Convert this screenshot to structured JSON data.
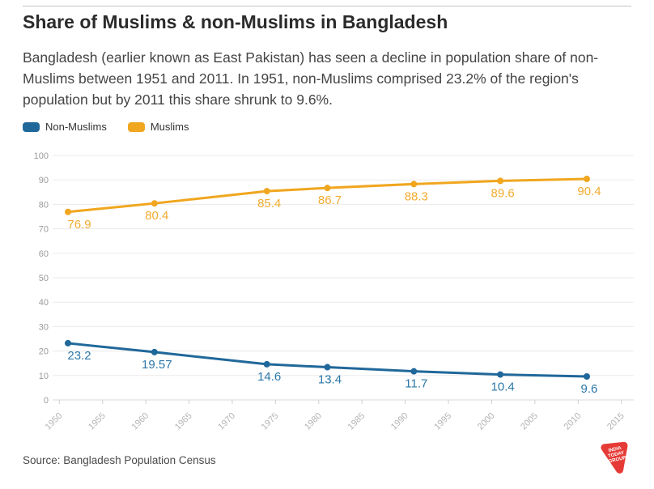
{
  "header": {
    "title": "Share of Muslims & non-Muslims in Bangladesh",
    "subtitle": "Bangladesh (earlier known as East Pakistan) has seen a decline in population share of non-Muslims between 1951 and 2011. In 1951, non-Muslims comprised 23.2% of the region's population but by 2011 this share shrunk to 9.6%."
  },
  "legend": {
    "items": [
      {
        "label": "Non-Muslims",
        "color": "#20689a"
      },
      {
        "label": "Muslims",
        "color": "#f0a61e"
      }
    ]
  },
  "chart_data": {
    "type": "line",
    "x": [
      1951,
      1961,
      1974,
      1981,
      1991,
      2001,
      2011
    ],
    "series": [
      {
        "name": "Non-Muslims",
        "color": "#20689a",
        "label_color": "#2d78a8",
        "values": [
          23.2,
          19.57,
          14.6,
          13.4,
          11.7,
          10.4,
          9.6
        ],
        "point_labels": [
          "23.2",
          "19.57",
          "14.6",
          "13.4",
          "11.7",
          "10.4",
          "9.6"
        ]
      },
      {
        "name": "Muslims",
        "color": "#f0a61e",
        "label_color": "#f2ab30",
        "values": [
          76.9,
          80.4,
          85.4,
          86.7,
          88.3,
          89.6,
          90.4
        ],
        "point_labels": [
          "76.9",
          "80.4",
          "85.4",
          "86.7",
          "88.3",
          "89.6",
          "90.4"
        ]
      }
    ],
    "ylim": [
      0,
      100
    ],
    "yticks": [
      0,
      10,
      20,
      30,
      40,
      50,
      60,
      70,
      80,
      90,
      100
    ],
    "xticks": [
      1950,
      1955,
      1960,
      1965,
      1970,
      1975,
      1980,
      1985,
      1990,
      1995,
      2000,
      2005,
      2010,
      2015
    ],
    "grid": "horizontal",
    "legend_position": "top-left"
  },
  "footer": {
    "source": "Source: Bangladesh Population Census",
    "logo": {
      "lines": [
        "INDIA",
        "TODAY",
        "GROUP"
      ],
      "color": "#e63a36"
    }
  }
}
